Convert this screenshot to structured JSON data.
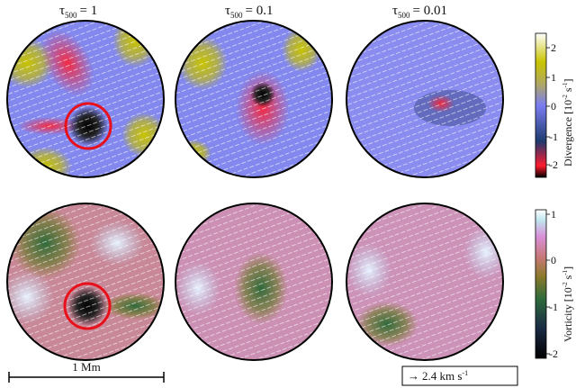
{
  "columns": [
    {
      "tau_symbol": "τ",
      "tau_sub": "500",
      "label": "= 1"
    },
    {
      "tau_symbol": "τ",
      "tau_sub": "500",
      "label": "= 0.1"
    },
    {
      "tau_symbol": "τ",
      "tau_sub": "500",
      "label": "= 0.01"
    }
  ],
  "divergence_colorbar": {
    "label": "Divergence [10",
    "exp1": "-2",
    "unit": " s",
    "exp2": "-1",
    "close": "]",
    "ticks": [
      "2",
      "1",
      "0",
      "-1",
      "-2"
    ],
    "tick_values": [
      2,
      1,
      0,
      -1,
      -2
    ],
    "range": [
      -2.4,
      2.4
    ],
    "colors": [
      "#000000",
      "#ff1a2e",
      "#1e3a6e",
      "#7a7ef2",
      "#b0a860",
      "#c8c400",
      "#ffffff"
    ]
  },
  "vorticity_colorbar": {
    "label": "Vorticity [10",
    "exp1": "-2",
    "unit": " s",
    "exp2": "-1",
    "close": "]",
    "ticks": [
      "1",
      "0",
      "-1",
      "-2"
    ],
    "tick_values": [
      1,
      0,
      -1,
      -2
    ],
    "range": [
      -2.1,
      1.1
    ],
    "colors": [
      "#000000",
      "#1a2a44",
      "#2e6a3c",
      "#8a7a2a",
      "#c87878",
      "#d890d8",
      "#c0e6ee",
      "#ffffff"
    ]
  },
  "scale_bar": {
    "label": "1 Mm"
  },
  "velocity_key": {
    "arrow": "→",
    "label": "2.4 km s",
    "exp": "-1"
  }
}
